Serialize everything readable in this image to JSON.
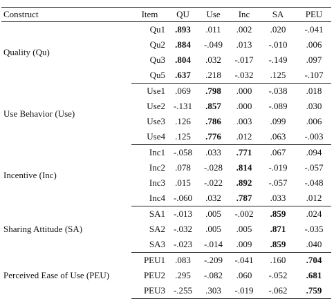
{
  "headers": [
    "Construct",
    "Item",
    "QU",
    "Use",
    "Inc",
    "SA",
    "PEU"
  ],
  "groups": [
    {
      "construct": "Quality (Qu)",
      "rows": [
        {
          "item": "Qu1",
          "values": [
            ".893",
            ".011",
            ".002",
            ".020",
            "-.041"
          ],
          "bold": 0
        },
        {
          "item": "Qu2",
          "values": [
            ".884",
            "-.049",
            ".013",
            "-.010",
            ".006"
          ],
          "bold": 0
        },
        {
          "item": "Qu3",
          "values": [
            ".804",
            ".032",
            "-.017",
            "-.149",
            ".097"
          ],
          "bold": 0
        },
        {
          "item": "Qu5",
          "values": [
            ".637",
            ".218",
            "-.032",
            ".125",
            "-.107"
          ],
          "bold": 0
        }
      ]
    },
    {
      "construct": "Use Behavior (Use)",
      "rows": [
        {
          "item": "Use1",
          "values": [
            ".069",
            ".798",
            ".000",
            "-.038",
            ".018"
          ],
          "bold": 1
        },
        {
          "item": "Use2",
          "values": [
            "-.131",
            ".857",
            ".000",
            "-.089",
            ".030"
          ],
          "bold": 1
        },
        {
          "item": "Use3",
          "values": [
            ".126",
            ".786",
            ".003",
            ".099",
            ".006"
          ],
          "bold": 1
        },
        {
          "item": "Use4",
          "values": [
            ".125",
            ".776",
            ".012",
            ".063",
            "-.003"
          ],
          "bold": 1
        }
      ]
    },
    {
      "construct": "Incentive (Inc)",
      "rows": [
        {
          "item": "Inc1",
          "values": [
            "-.058",
            ".033",
            ".771",
            ".067",
            ".094"
          ],
          "bold": 2
        },
        {
          "item": "Inc2",
          "values": [
            ".078",
            "-.028",
            ".814",
            "-.019",
            "-.057"
          ],
          "bold": 2
        },
        {
          "item": "Inc3",
          "values": [
            ".015",
            "-.022",
            ".892",
            "-.057",
            "-.048"
          ],
          "bold": 2
        },
        {
          "item": "Inc4",
          "values": [
            "-.060",
            ".032",
            ".787",
            ".033",
            ".012"
          ],
          "bold": 2
        }
      ]
    },
    {
      "construct": "Sharing Attitude (SA)",
      "rows": [
        {
          "item": "SA1",
          "values": [
            "-.013",
            ".005",
            "-.002",
            ".859",
            ".024"
          ],
          "bold": 3
        },
        {
          "item": "SA2",
          "values": [
            "-.032",
            ".005",
            ".005",
            ".871",
            "-.035"
          ],
          "bold": 3
        },
        {
          "item": "SA3",
          "values": [
            "-.023",
            "-.014",
            ".009",
            ".859",
            ".040"
          ],
          "bold": 3
        }
      ]
    },
    {
      "construct": "Perceived Ease of Use (PEU)",
      "rows": [
        {
          "item": "PEU1",
          "values": [
            ".083",
            "-.209",
            "-.041",
            ".160",
            ".704"
          ],
          "bold": 4
        },
        {
          "item": "PEU2",
          "values": [
            ".295",
            "-.082",
            ".060",
            "-.052",
            ".681"
          ],
          "bold": 4
        },
        {
          "item": "PEU3",
          "values": [
            "-.255",
            ".303",
            "-.019",
            "-.062",
            ".759"
          ],
          "bold": 4
        }
      ]
    }
  ]
}
